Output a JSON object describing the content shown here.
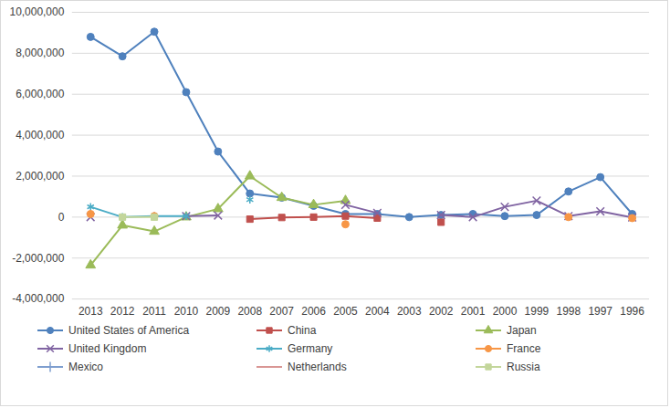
{
  "chart_data": {
    "type": "line",
    "categories": [
      "2013",
      "2012",
      "2011",
      "2010",
      "2009",
      "2008",
      "2007",
      "2006",
      "2005",
      "2004",
      "2003",
      "2002",
      "2001",
      "2000",
      "1999",
      "1998",
      "1997",
      "1996"
    ],
    "series": [
      {
        "name": "United States of America",
        "color": "#4f81bd",
        "marker": "circle",
        "values": [
          8800000,
          7850000,
          9050000,
          6100000,
          3200000,
          1150000,
          950000,
          550000,
          150000,
          150000,
          0,
          100000,
          150000,
          50000,
          100000,
          1250000,
          1950000,
          150000
        ]
      },
      {
        "name": "China",
        "color": "#c0504d",
        "marker": "square",
        "values": [
          null,
          null,
          null,
          null,
          null,
          -100000,
          -20000,
          0,
          50000,
          -50000,
          null,
          -250000,
          null,
          null,
          null,
          null,
          null,
          null
        ]
      },
      {
        "name": "Japan",
        "color": "#9bbb59",
        "marker": "triangle",
        "values": [
          -2350000,
          -400000,
          -700000,
          0,
          400000,
          2000000,
          950000,
          600000,
          800000,
          null,
          null,
          null,
          null,
          null,
          null,
          null,
          null,
          null
        ]
      },
      {
        "name": "United Kingdom",
        "color": "#8064a2",
        "marker": "times",
        "values": [
          0,
          null,
          null,
          50000,
          80000,
          null,
          null,
          null,
          600000,
          200000,
          null,
          100000,
          0,
          500000,
          800000,
          50000,
          280000,
          -20000
        ]
      },
      {
        "name": "Germany",
        "color": "#4bacc6",
        "marker": "asterisk",
        "values": [
          500000,
          0,
          50000,
          50000,
          null,
          850000,
          null,
          null,
          null,
          null,
          null,
          null,
          null,
          null,
          null,
          null,
          null,
          null
        ]
      },
      {
        "name": "France",
        "color": "#f79646",
        "marker": "circle",
        "values": [
          150000,
          null,
          50000,
          null,
          null,
          null,
          null,
          null,
          -350000,
          null,
          null,
          null,
          null,
          null,
          null,
          0,
          null,
          -50000
        ]
      },
      {
        "name": "Mexico",
        "color": "#7f9fcf",
        "marker": "plus",
        "values": [
          null,
          null,
          null,
          null,
          null,
          null,
          null,
          null,
          null,
          null,
          null,
          null,
          null,
          null,
          null,
          null,
          null,
          null
        ]
      },
      {
        "name": "Netherlands",
        "color": "#d99694",
        "marker": "none",
        "values": [
          null,
          null,
          null,
          null,
          null,
          null,
          null,
          null,
          null,
          null,
          null,
          null,
          null,
          null,
          null,
          null,
          null,
          null
        ]
      },
      {
        "name": "Russia",
        "color": "#c3d69b",
        "marker": "square",
        "values": [
          null,
          0,
          0,
          null,
          null,
          null,
          null,
          null,
          null,
          null,
          null,
          null,
          null,
          null,
          null,
          null,
          null,
          null
        ]
      }
    ],
    "ylim": [
      -4000000,
      10000000
    ],
    "yticks": [
      {
        "value": -4000000,
        "label": "-4,000,000"
      },
      {
        "value": -2000000,
        "label": "-2,000,000"
      },
      0,
      {
        "value": 2000000,
        "label": "2,000,000"
      },
      {
        "value": 4000000,
        "label": "4,000,000"
      },
      {
        "value": 6000000,
        "label": "6,000,000"
      },
      {
        "value": 8000000,
        "label": "8,000,000"
      },
      {
        "value": 10000000,
        "label": "10,000,000"
      }
    ],
    "grid": true,
    "legend": "bottom"
  }
}
